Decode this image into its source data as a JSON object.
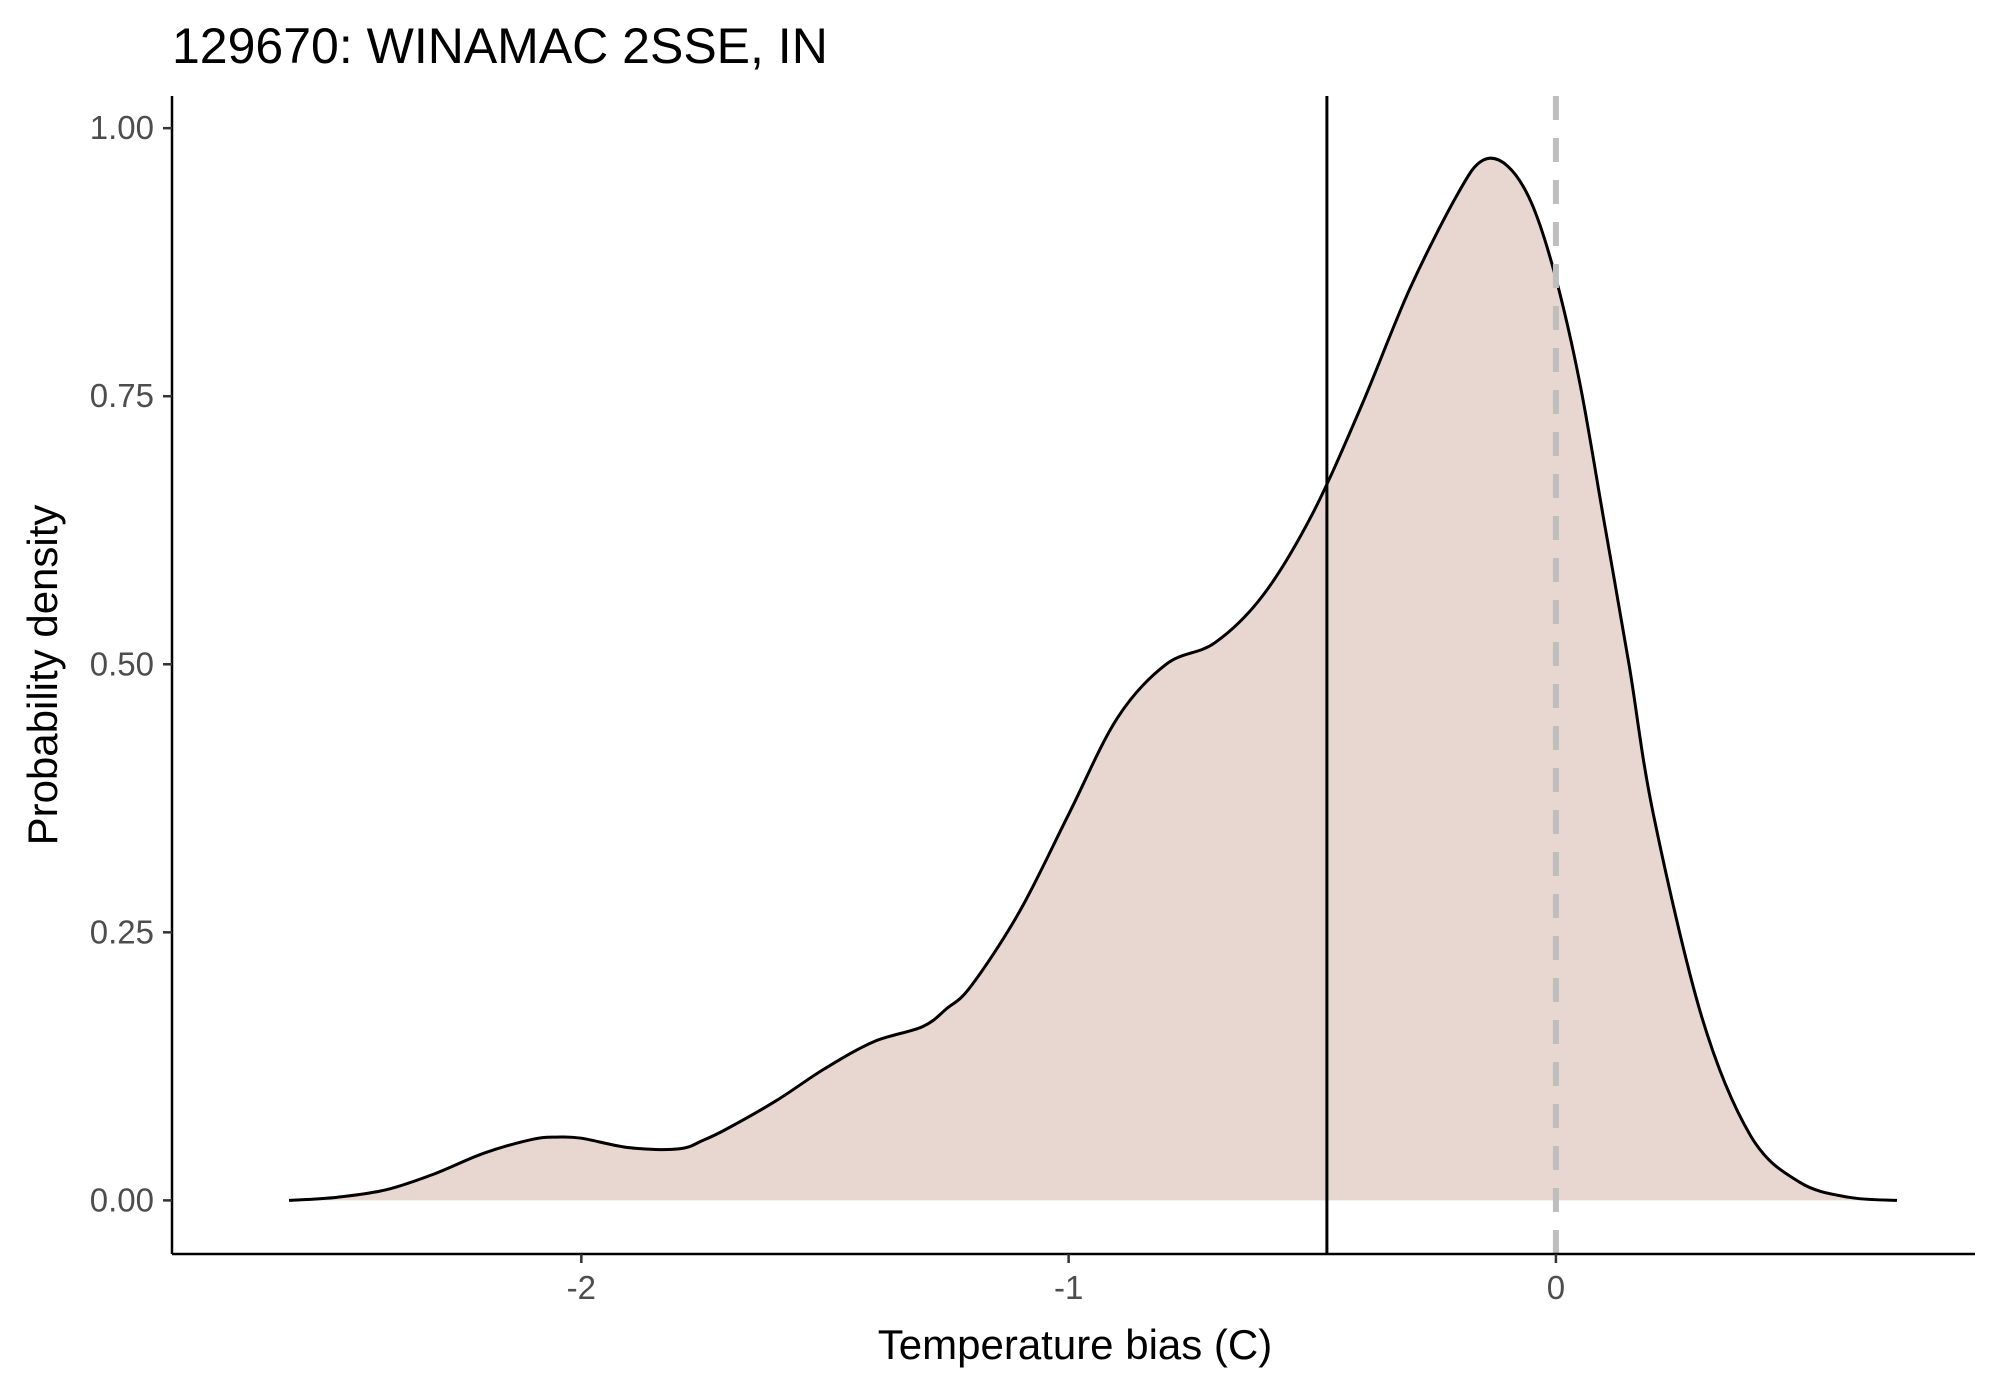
{
  "chart_data": {
    "type": "area",
    "title": "129670: WINAMAC 2SSE, IN",
    "xlabel": "Temperature bias (C)",
    "ylabel": "Probability density",
    "xlim": [
      -2.84,
      0.86
    ],
    "ylim": [
      -0.05,
      1.03
    ],
    "x_ticks": [
      -2,
      -1,
      0
    ],
    "x_tick_labels": [
      "-2",
      "-1",
      "0"
    ],
    "y_ticks": [
      0,
      0.25,
      0.5,
      0.75,
      1.0
    ],
    "y_tick_labels": [
      "0.00",
      "0.25",
      "0.50",
      "0.75",
      "1.00"
    ],
    "grid": false,
    "legend": "none",
    "fill_color": "#e8d6d0",
    "line_color": "#000000",
    "series": [
      {
        "x": [
          -2.6,
          -2.5,
          -2.4,
          -2.3,
          -2.2,
          -2.1,
          -2.05,
          -2.0,
          -1.9,
          -1.8,
          -1.75,
          -1.7,
          -1.6,
          -1.5,
          -1.4,
          -1.3,
          -1.25,
          -1.2,
          -1.1,
          -1.0,
          -0.9,
          -0.8,
          -0.7,
          -0.6,
          -0.5,
          -0.4,
          -0.3,
          -0.2,
          -0.15,
          -0.1,
          -0.05,
          0.0,
          0.05,
          0.1,
          0.15,
          0.2,
          0.3,
          0.4,
          0.5,
          0.6,
          0.7
        ],
        "y": [
          0.0,
          0.003,
          0.01,
          0.025,
          0.044,
          0.057,
          0.059,
          0.058,
          0.049,
          0.048,
          0.056,
          0.067,
          0.093,
          0.123,
          0.148,
          0.162,
          0.179,
          0.2,
          0.27,
          0.36,
          0.45,
          0.5,
          0.52,
          0.565,
          0.64,
          0.74,
          0.85,
          0.94,
          0.97,
          0.965,
          0.93,
          0.86,
          0.76,
          0.63,
          0.5,
          0.36,
          0.17,
          0.06,
          0.017,
          0.003,
          0.0
        ]
      }
    ],
    "reference_lines": [
      {
        "axis": "x",
        "value": -0.47,
        "style": "solid",
        "color": "#000000"
      },
      {
        "axis": "x",
        "value": 0.0,
        "style": "dashed",
        "color": "#bebebe"
      }
    ]
  }
}
